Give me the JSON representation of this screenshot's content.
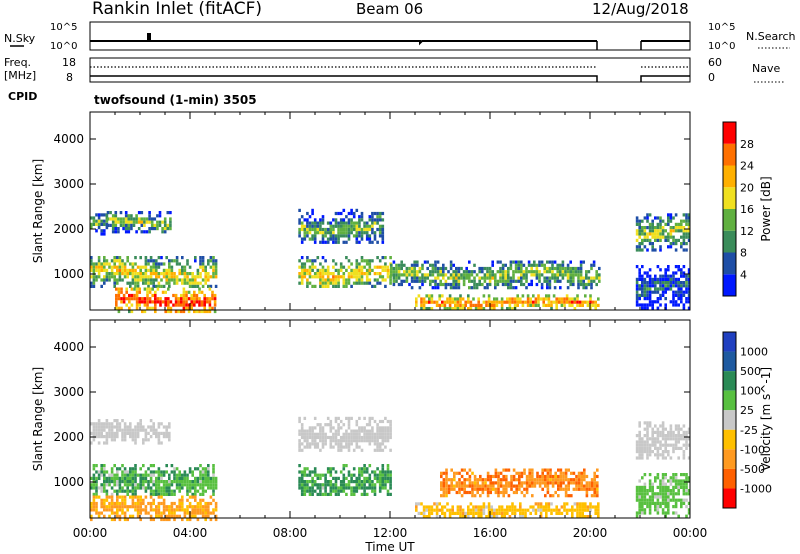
{
  "header": {
    "site": "Rankin Inlet (fitACF)",
    "beam": "Beam 06",
    "date": "12/Aug/2018"
  },
  "param_panels": {
    "nsky_label": "N.Sky",
    "nsky_ticks": [
      "10^5",
      "10^0"
    ],
    "nsearch_label": "N.Search",
    "nsearch_ticks": [
      "10^5",
      "10^0"
    ],
    "freq_label_1": "Freq.",
    "freq_label_2": "[MHz]",
    "freq_ticks": [
      "18",
      "8"
    ],
    "nave_label": "Nave",
    "nave_ticks": [
      "60",
      "0"
    ],
    "cpid_label": "CPID",
    "cpid_value": "twofsound (1-min) 3505"
  },
  "colors": {
    "power_scale": [
      "#0018ff",
      "#1e4ea6",
      "#3a8c5a",
      "#60b040",
      "#f0e020",
      "#ffb000",
      "#ff7000",
      "#ff0000"
    ],
    "velocity_scale": [
      "#2040c0",
      "#1e5aa0",
      "#2a8a55",
      "#58c040",
      "#c8c8c8",
      "#ffc000",
      "#ff9a20",
      "#ff6000",
      "#ff0000"
    ]
  },
  "chart_data": [
    {
      "type": "heatmap",
      "name": "power",
      "ylabel": "Slant Range [km]",
      "yticks": [
        "1000",
        "2000",
        "3000",
        "4000"
      ],
      "ylim": [
        200,
        4600
      ],
      "xlim": [
        "00:00",
        "24:00"
      ],
      "colorbar_label": "Power [dB]",
      "colorbar_ticks": [
        "4",
        "8",
        "12",
        "16",
        "20",
        "24",
        "28"
      ],
      "colorbar_range": [
        0,
        32
      ],
      "data_gap": [
        "20:20",
        "21:50"
      ],
      "echo_regions": [
        {
          "t_start": "00:00",
          "t_end": "00:40",
          "range_km": [
            1900,
            2350
          ],
          "power_db": 12
        },
        {
          "t_start": "00:40",
          "t_end": "03:10",
          "range_km": [
            1950,
            2400
          ],
          "power_db": 14
        },
        {
          "t_start": "00:00",
          "t_end": "05:00",
          "range_km": [
            700,
            1400
          ],
          "power_db": 18
        },
        {
          "t_start": "01:00",
          "t_end": "05:00",
          "range_km": [
            200,
            700
          ],
          "power_db": 28
        },
        {
          "t_start": "08:20",
          "t_end": "11:40",
          "range_km": [
            1700,
            2450
          ],
          "power_db": 12
        },
        {
          "t_start": "08:20",
          "t_end": "12:00",
          "range_km": [
            700,
            1400
          ],
          "power_db": 18
        },
        {
          "t_start": "12:00",
          "t_end": "20:20",
          "range_km": [
            700,
            1300
          ],
          "power_db": 14
        },
        {
          "t_start": "13:00",
          "t_end": "20:20",
          "range_km": [
            250,
            550
          ],
          "power_db": 24
        },
        {
          "t_start": "21:50",
          "t_end": "24:00",
          "range_km": [
            1500,
            2350
          ],
          "power_db": 14
        },
        {
          "t_start": "21:50",
          "t_end": "24:00",
          "range_km": [
            250,
            1200
          ],
          "power_db": 6
        }
      ]
    },
    {
      "type": "heatmap",
      "name": "velocity",
      "ylabel": "Slant Range [km]",
      "yticks": [
        "1000",
        "2000",
        "3000",
        "4000"
      ],
      "ylim": [
        200,
        4600
      ],
      "xlabel": "Time UT",
      "xticks": [
        "00:00",
        "04:00",
        "08:00",
        "12:00",
        "16:00",
        "20:00",
        "00:00"
      ],
      "xlim": [
        "00:00",
        "24:00"
      ],
      "colorbar_label": "Velocity [m s^-1]",
      "colorbar_ticks": [
        "1000",
        "500",
        "100",
        "25",
        "-25",
        "-100",
        "-500",
        "-1000"
      ],
      "data_gap": [
        "20:20",
        "21:50"
      ],
      "echo_regions": [
        {
          "t_start": "00:00",
          "t_end": "03:10",
          "range_km": [
            1900,
            2400
          ],
          "velocity": 0
        },
        {
          "t_start": "00:00",
          "t_end": "05:00",
          "range_km": [
            700,
            1400
          ],
          "velocity": 80
        },
        {
          "t_start": "00:00",
          "t_end": "05:00",
          "range_km": [
            200,
            700
          ],
          "velocity": -150
        },
        {
          "t_start": "08:20",
          "t_end": "12:00",
          "range_km": [
            1700,
            2450
          ],
          "velocity": 0
        },
        {
          "t_start": "08:20",
          "t_end": "12:00",
          "range_km": [
            700,
            1400
          ],
          "velocity": 120
        },
        {
          "t_start": "14:00",
          "t_end": "20:20",
          "range_km": [
            700,
            1300
          ],
          "velocity": -400
        },
        {
          "t_start": "13:00",
          "t_end": "20:20",
          "range_km": [
            250,
            550
          ],
          "velocity": -60
        },
        {
          "t_start": "21:50",
          "t_end": "24:00",
          "range_km": [
            1500,
            2350
          ],
          "velocity": 0
        },
        {
          "t_start": "21:50",
          "t_end": "24:00",
          "range_km": [
            250,
            1200
          ],
          "velocity": 50
        }
      ]
    }
  ]
}
